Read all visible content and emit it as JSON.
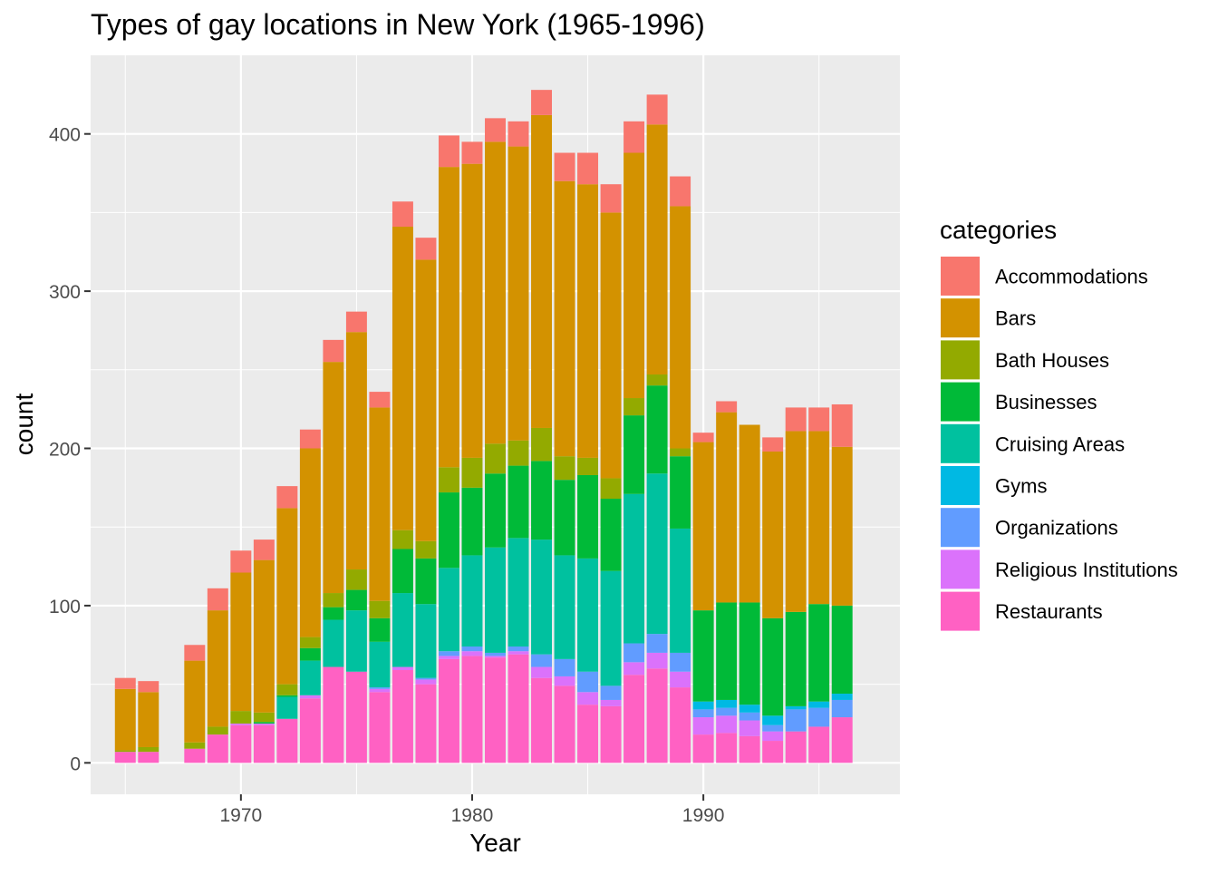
{
  "colors": {
    "panel_background": "#EBEBEB",
    "grid_major": "#FFFFFF",
    "text_dark": "#000000",
    "text_axis": "#4D4D4D"
  },
  "chart_data": {
    "type": "bar",
    "stacked": true,
    "title": "Types of gay locations in New York (1965-1996)",
    "xlabel": "Year",
    "ylabel": "count",
    "xlim": [
      1963.5,
      1998.5
    ],
    "ylim": [
      -20,
      450
    ],
    "x_ticks": [
      1970,
      1980,
      1990
    ],
    "y_ticks": [
      0,
      100,
      200,
      300,
      400
    ],
    "grid": true,
    "legend_title": "categories",
    "legend_position": "right",
    "x": [
      1965,
      1966,
      1968,
      1969,
      1970,
      1971,
      1972,
      1973,
      1974,
      1975,
      1976,
      1977,
      1978,
      1979,
      1980,
      1981,
      1982,
      1983,
      1984,
      1985,
      1986,
      1987,
      1988,
      1989,
      1990,
      1991,
      1992,
      1993,
      1994,
      1995,
      1996
    ],
    "series": [
      {
        "name": "Accommodations",
        "color": "#F8766D",
        "values": [
          7,
          7,
          10,
          14,
          14,
          13,
          14,
          12,
          14,
          13,
          10,
          16,
          14,
          20,
          14,
          15,
          16,
          16,
          18,
          20,
          18,
          20,
          19,
          19,
          6,
          7,
          0,
          9,
          15,
          15,
          27
        ]
      },
      {
        "name": "Bars",
        "color": "#D39200",
        "values": [
          39,
          35,
          52,
          74,
          88,
          97,
          112,
          120,
          147,
          151,
          123,
          193,
          179,
          191,
          187,
          192,
          187,
          199,
          175,
          174,
          169,
          156,
          159,
          154,
          107,
          121,
          113,
          106,
          115,
          110,
          101
        ]
      },
      {
        "name": "Bath Houses",
        "color": "#93AA00",
        "values": [
          1,
          3,
          4,
          5,
          8,
          6,
          7,
          7,
          9,
          13,
          11,
          12,
          11,
          16,
          19,
          19,
          16,
          21,
          15,
          11,
          13,
          11,
          7,
          5,
          0,
          0,
          0,
          0,
          0,
          0,
          0
        ]
      },
      {
        "name": "Businesses",
        "color": "#00BA38",
        "values": [
          0,
          0,
          0,
          0,
          0,
          1,
          1,
          8,
          8,
          13,
          15,
          28,
          29,
          48,
          43,
          47,
          46,
          50,
          48,
          53,
          46,
          50,
          56,
          46,
          58,
          62,
          65,
          62,
          60,
          62,
          56
        ]
      },
      {
        "name": "Cruising Areas",
        "color": "#00C19F",
        "values": [
          0,
          0,
          0,
          0,
          0,
          0,
          14,
          22,
          30,
          39,
          29,
          47,
          47,
          53,
          58,
          67,
          69,
          73,
          66,
          72,
          73,
          95,
          102,
          79,
          0,
          0,
          0,
          0,
          0,
          0,
          0
        ]
      },
      {
        "name": "Gyms",
        "color": "#00B9E3",
        "values": [
          0,
          0,
          0,
          0,
          0,
          0,
          0,
          0,
          0,
          0,
          0,
          0,
          0,
          0,
          0,
          0,
          0,
          0,
          0,
          0,
          0,
          0,
          0,
          0,
          5,
          5,
          5,
          6,
          2,
          4,
          4
        ]
      },
      {
        "name": "Organizations",
        "color": "#619CFF",
        "values": [
          0,
          0,
          0,
          0,
          0,
          0,
          0,
          0,
          0,
          0,
          1,
          0,
          1,
          3,
          3,
          2,
          3,
          8,
          11,
          13,
          9,
          12,
          12,
          12,
          5,
          5,
          5,
          4,
          14,
          12,
          11
        ]
      },
      {
        "name": "Religious Institutions",
        "color": "#DB72FB",
        "values": [
          0,
          0,
          0,
          0,
          1,
          1,
          0,
          2,
          0,
          0,
          2,
          2,
          3,
          2,
          3,
          1,
          2,
          7,
          6,
          8,
          4,
          8,
          10,
          10,
          11,
          11,
          10,
          6,
          0,
          0,
          0
        ]
      },
      {
        "name": "Restaurants",
        "color": "#FF61C3",
        "values": [
          7,
          7,
          9,
          18,
          24,
          24,
          28,
          41,
          61,
          58,
          45,
          59,
          50,
          66,
          68,
          67,
          69,
          54,
          49,
          37,
          36,
          56,
          60,
          48,
          18,
          19,
          17,
          14,
          20,
          23,
          29
        ]
      }
    ]
  }
}
